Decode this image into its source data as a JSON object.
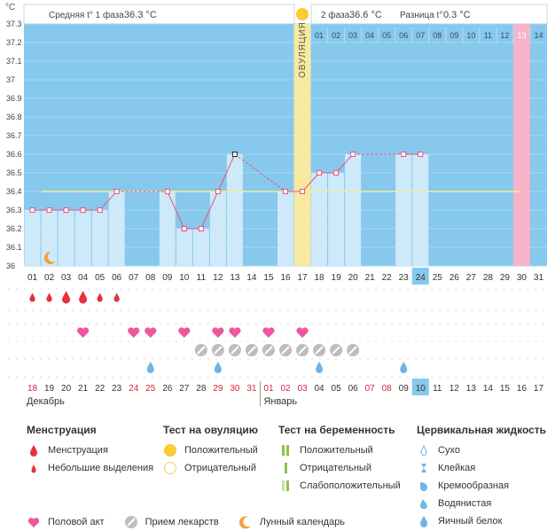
{
  "header": {
    "unit": "°C",
    "phase1_label": "Средняя t° 1 фаза",
    "phase1_value": "36.3 °C",
    "phase2_label": "2 фаза",
    "phase2_value": "36.6 °C",
    "diff_label": "Разница t°",
    "diff_value": "0.3 °C",
    "ovulation_label": "ОВУЛЯЦИЯ"
  },
  "colors": {
    "sky": "#87c8ed",
    "bar": "#cde9fa",
    "ovulation": "#f7eaa0",
    "pink": "#f7b3c8",
    "line": "#e8557a",
    "coverline": "#f2ee9a",
    "heart": "#f0569b",
    "drop_red": "#e5323c",
    "drop_blue": "#6fb5e6",
    "pill": "#bdbdbd",
    "moon": "#f2a23a"
  },
  "chart_data": {
    "type": "line",
    "ylim": [
      36.0,
      37.3
    ],
    "yticks": [
      "36",
      "36.1",
      "36.2",
      "36.3",
      "36.4",
      "36.5",
      "36.6",
      "36.7",
      "36.8",
      "36.9",
      "37",
      "37.1",
      "37.2",
      "37.3"
    ],
    "cycle_days": [
      "01",
      "02",
      "03",
      "04",
      "05",
      "06",
      "07",
      "08",
      "09",
      "10",
      "11",
      "12",
      "13",
      "14",
      "15",
      "16",
      "17",
      "18",
      "19",
      "20",
      "21",
      "22",
      "23",
      "24",
      "25",
      "26",
      "27",
      "28",
      "29",
      "30",
      "31"
    ],
    "phase2_days": [
      "01",
      "02",
      "03",
      "04",
      "05",
      "06",
      "07",
      "08",
      "09",
      "10",
      "11",
      "12",
      "13",
      "14"
    ],
    "calendar_dates": [
      "18",
      "19",
      "20",
      "21",
      "22",
      "23",
      "24",
      "25",
      "26",
      "27",
      "28",
      "29",
      "30",
      "31",
      "01",
      "02",
      "03",
      "04",
      "05",
      "06",
      "07",
      "08",
      "09",
      "10",
      "11",
      "12",
      "13",
      "14",
      "15",
      "16",
      "17"
    ],
    "red_dates": [
      "18",
      "24",
      "25",
      "29",
      "30",
      "31",
      "01",
      "02",
      "03",
      "07",
      "08",
      "13",
      "14",
      "15"
    ],
    "months": [
      "Декабрь",
      "Январь"
    ],
    "today_day": "24",
    "ovulation_day": "17",
    "coverline": 36.4,
    "temperatures": [
      36.3,
      36.3,
      36.3,
      36.3,
      36.3,
      36.4,
      null,
      null,
      36.4,
      36.2,
      36.2,
      36.4,
      36.6,
      null,
      null,
      36.4,
      36.4,
      36.5,
      36.5,
      36.6,
      null,
      null,
      36.6,
      36.6,
      null,
      null,
      null,
      null,
      null,
      null,
      null
    ],
    "menstruation": [
      1,
      1,
      2,
      2,
      1,
      1,
      0,
      0,
      0,
      0,
      0,
      0,
      0,
      0,
      0,
      0,
      0,
      0,
      0,
      0,
      0,
      0,
      0,
      0,
      0,
      0,
      0,
      0,
      0,
      0,
      0
    ],
    "intercourse": [
      0,
      0,
      0,
      1,
      0,
      0,
      1,
      1,
      0,
      1,
      0,
      1,
      1,
      0,
      1,
      0,
      1,
      0,
      0,
      0,
      0,
      0,
      0,
      0,
      0,
      0,
      0,
      0,
      0,
      0,
      0
    ],
    "medication": [
      0,
      0,
      0,
      0,
      0,
      0,
      0,
      0,
      0,
      0,
      1,
      1,
      1,
      1,
      1,
      1,
      1,
      1,
      1,
      1,
      0,
      0,
      0,
      0,
      0,
      0,
      0,
      0,
      0,
      0,
      0
    ],
    "cervical": [
      "",
      "",
      "",
      "",
      "",
      "",
      "",
      "",
      "",
      "",
      "",
      "",
      "",
      "",
      "",
      "",
      "",
      "",
      "",
      "",
      "",
      "",
      "",
      "",
      "",
      "",
      "",
      "",
      "",
      "",
      ""
    ],
    "moon_day": "02"
  },
  "legend": {
    "col1": {
      "title": "Менструация",
      "items": [
        "Менструация",
        "Небольшие выделения"
      ]
    },
    "col2": {
      "title": "Тест на овуляцию",
      "items": [
        "Положительный",
        "Отрицательный"
      ]
    },
    "col3": {
      "title": "Тест на беременность",
      "items": [
        "Положительный",
        "Отрицательный",
        "Слабоположительный"
      ]
    },
    "col4": {
      "title": "Цервикальная жидкость",
      "items": [
        "Сухо",
        "Клейкая",
        "Кремообразная",
        "Водянистая",
        "Яичный белок"
      ]
    },
    "bottom": [
      "Половой акт",
      "Прием лекарств",
      "Лунный календарь"
    ]
  }
}
